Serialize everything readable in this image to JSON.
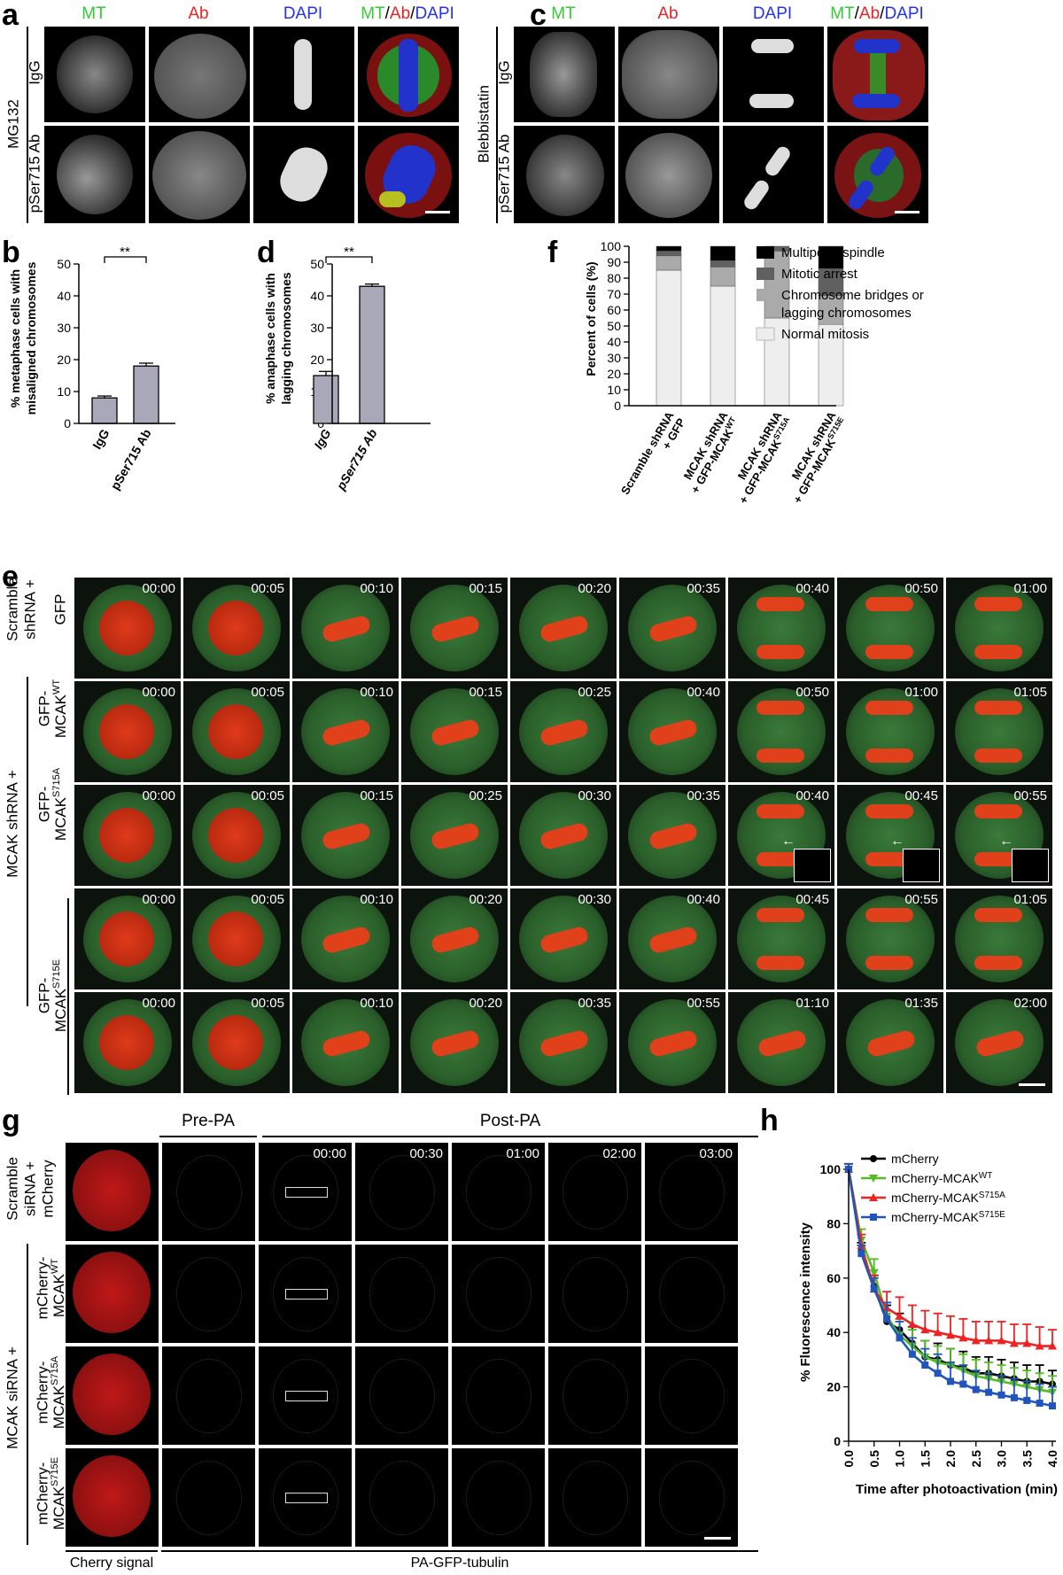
{
  "panel_letters": {
    "a": "a",
    "b": "b",
    "c": "c",
    "d": "d",
    "e": "e",
    "f": "f",
    "g": "g",
    "h": "h"
  },
  "colors": {
    "mt": "#33cc33",
    "ab": "#ee2222",
    "dapi": "#2233ee",
    "red_signal": "#dd1a1a"
  },
  "panel_a": {
    "headers": {
      "mt": "MT",
      "ab": "Ab",
      "dapi": "DAPI",
      "merge_mt": "MT",
      "merge_ab": "Ab",
      "merge_dapi": "DAPI",
      "slash": "/"
    },
    "treatment": "MG132",
    "rows": [
      "IgG",
      "pSer715 Ab"
    ]
  },
  "panel_c": {
    "headers": {
      "mt": "MT",
      "ab": "Ab",
      "dapi": "DAPI",
      "merge_mt": "MT",
      "merge_ab": "Ab",
      "merge_dapi": "DAPI",
      "slash": "/"
    },
    "treatment": "Blebbistatin",
    "rows": [
      "IgG",
      "pSer715 Ab"
    ]
  },
  "panel_b": {
    "significance": "**"
  },
  "panel_d": {
    "significance": "**"
  },
  "panel_e": {
    "row_labels": {
      "r1a": "Scramble",
      "r1b": "shRNA +",
      "r1c": "GFP",
      "group": "MCAK shRNA +",
      "r2a": "GFP-",
      "r2b": "MCAK",
      "r2sup": "WT",
      "r3a": "GFP-",
      "r3b": "MCAK",
      "r3sup": "S715A",
      "r45a": "GFP-",
      "r45b": "MCAK",
      "r45sup": "S715E"
    },
    "timestamps": [
      [
        "00:00",
        "00:05",
        "00:10",
        "00:15",
        "00:20",
        "00:35",
        "00:40",
        "00:50",
        "01:00"
      ],
      [
        "00:00",
        "00:05",
        "00:10",
        "00:15",
        "00:25",
        "00:40",
        "00:50",
        "01:00",
        "01:05"
      ],
      [
        "00:00",
        "00:05",
        "00:15",
        "00:25",
        "00:30",
        "00:35",
        "00:40",
        "00:45",
        "00:55"
      ],
      [
        "00:00",
        "00:05",
        "00:10",
        "00:20",
        "00:30",
        "00:40",
        "00:45",
        "00:55",
        "01:05"
      ],
      [
        "00:00",
        "00:05",
        "00:10",
        "00:20",
        "00:35",
        "00:55",
        "01:10",
        "01:35",
        "02:00"
      ]
    ]
  },
  "panel_g": {
    "pre_pa": "Pre-PA",
    "post_pa": "Post-PA",
    "timestamps": [
      "00:00",
      "00:30",
      "01:00",
      "02:00",
      "03:00"
    ],
    "row_labels": {
      "r1a": "Scramble",
      "r1b": "siRNA +",
      "r1c": "mCherry",
      "group": "MCAK siRNA +",
      "r2a": "mCherry-",
      "r2b": "MCAK",
      "r2sup": "WT",
      "r3a": "mCherry-",
      "r3b": "MCAK",
      "r3sup": "S715A",
      "r4a": "mCherry-",
      "r4b": "MCAK",
      "r4sup": "S715E"
    },
    "bottom_left": "Cherry signal",
    "bottom_right": "PA-GFP-tubulin"
  },
  "chart_data": [
    {
      "panel": "b",
      "type": "bar",
      "categories": [
        "IgG",
        "pSer715 Ab"
      ],
      "values": [
        8,
        18
      ],
      "errors": [
        0.6,
        0.9
      ],
      "ylabel": "% metaphase cells with misaligned chromosomes",
      "ylim": [
        0,
        50
      ],
      "yticks": [
        0,
        10,
        20,
        30,
        40,
        50
      ],
      "bar_color": "#a8a8b8"
    },
    {
      "panel": "d",
      "type": "bar",
      "categories": [
        "IgG",
        "pSer715 Ab"
      ],
      "values": [
        15,
        43
      ],
      "errors": [
        1.3,
        0.7
      ],
      "ylabel": "% anaphase cells with lagging chromosomes",
      "ylim": [
        0,
        50
      ],
      "yticks": [
        0,
        10,
        20,
        30,
        40,
        50
      ],
      "bar_color": "#a8a8b8"
    },
    {
      "panel": "f",
      "type": "bar",
      "stacked": true,
      "categories": [
        "Scramble shRNA + GFP",
        "MCAK shRNA + GFP-MCAK WT",
        "MCAK shRNA + GFP-MCAK S715A",
        "MCAK shRNA + GFP-MCAK S715E"
      ],
      "category_lines": [
        [
          "Scramble shRNA",
          "+ GFP",
          ""
        ],
        [
          "MCAK shRNA",
          "+ GFP-MCAK",
          "WT"
        ],
        [
          "MCAK shRNA",
          "+ GFP-MCAK",
          "S715A"
        ],
        [
          "MCAK shRNA",
          "+ GFP-MCAK",
          "S715E"
        ]
      ],
      "series": [
        {
          "name": "Normal mitosis",
          "values": [
            85,
            75,
            55,
            51
          ],
          "color": "#eeeeee"
        },
        {
          "name": "Chromosome bridges or lagging chromosomes",
          "values": [
            9,
            12,
            42,
            18
          ],
          "color": "#aaaaaa"
        },
        {
          "name": "Mitotic arrest",
          "values": [
            3,
            4,
            3,
            17
          ],
          "color": "#606060"
        },
        {
          "name": "Multipolar spindle",
          "values": [
            3,
            9,
            0,
            14
          ],
          "color": "#000000"
        }
      ],
      "legend_order": [
        "Multipolar spindle",
        "Mitotic arrest",
        "Chromosome bridges or lagging chromosomes",
        "Normal mitosis"
      ],
      "legend_lines": [
        [
          "Multipolar spindle"
        ],
        [
          "Mitotic arrest"
        ],
        [
          "Chromosome bridges or",
          "lagging chromosomes"
        ],
        [
          "Normal mitosis"
        ]
      ],
      "ylabel": "Percent of cells (%)",
      "ylim": [
        0,
        100
      ],
      "yticks": [
        0,
        10,
        20,
        30,
        40,
        50,
        60,
        70,
        80,
        90,
        100
      ],
      "legend_position": "right"
    },
    {
      "panel": "h",
      "type": "line",
      "x": [
        0,
        0.25,
        0.5,
        0.75,
        1.0,
        1.25,
        1.5,
        1.75,
        2.0,
        2.25,
        2.5,
        2.75,
        3.0,
        3.25,
        3.5,
        3.75,
        4.0
      ],
      "series": [
        {
          "name": "mCherry",
          "color": "#000000",
          "marker": "circle",
          "values": [
            100,
            70,
            57,
            44,
            41,
            36,
            31,
            30,
            28,
            27,
            25,
            25,
            24,
            23,
            22,
            22,
            21
          ],
          "errors": [
            2,
            3,
            4,
            6,
            6,
            6,
            6,
            6,
            6,
            6,
            6,
            6,
            6,
            6,
            6,
            6,
            5
          ]
        },
        {
          "name": "mCherry-MCAK",
          "sup": "WT",
          "color": "#55bb22",
          "marker": "triangle-down",
          "values": [
            100,
            74,
            62,
            46,
            39,
            35,
            31,
            29,
            28,
            26,
            24,
            23,
            22,
            21,
            20,
            19,
            18
          ],
          "errors": [
            2,
            4,
            5,
            5,
            6,
            6,
            6,
            6,
            6,
            6,
            6,
            6,
            6,
            6,
            6,
            6,
            6
          ]
        },
        {
          "name": "mCherry-MCAK",
          "sup": "S715A",
          "color": "#ee2222",
          "marker": "triangle-up",
          "values": [
            100,
            72,
            56,
            49,
            46,
            43,
            41,
            40,
            39,
            38,
            37,
            37,
            37,
            36,
            36,
            35,
            35
          ],
          "errors": [
            2,
            4,
            5,
            6,
            7,
            7,
            7,
            7,
            7,
            7,
            7,
            7,
            7,
            7,
            7,
            7,
            6
          ]
        },
        {
          "name": "mCherry-MCAK",
          "sup": "S715E",
          "color": "#2255bb",
          "marker": "square",
          "values": [
            100,
            69,
            56,
            45,
            38,
            32,
            28,
            25,
            22,
            21,
            19,
            18,
            17,
            16,
            15,
            14,
            13
          ],
          "errors": [
            2,
            3,
            4,
            6,
            6,
            6,
            6,
            7,
            7,
            7,
            7,
            7,
            7,
            7,
            7,
            7,
            7
          ]
        }
      ],
      "xlabel": "Time after photoactivation (min)",
      "ylabel": "% Fluorescence intensity",
      "xlim": [
        0,
        4
      ],
      "ylim": [
        0,
        100
      ],
      "xticks": [
        0.0,
        0.5,
        1.0,
        1.5,
        2.0,
        2.5,
        3.0,
        3.5,
        4.0
      ],
      "yticks": [
        0,
        20,
        40,
        60,
        80,
        100
      ],
      "legend_position": "top-right"
    }
  ]
}
